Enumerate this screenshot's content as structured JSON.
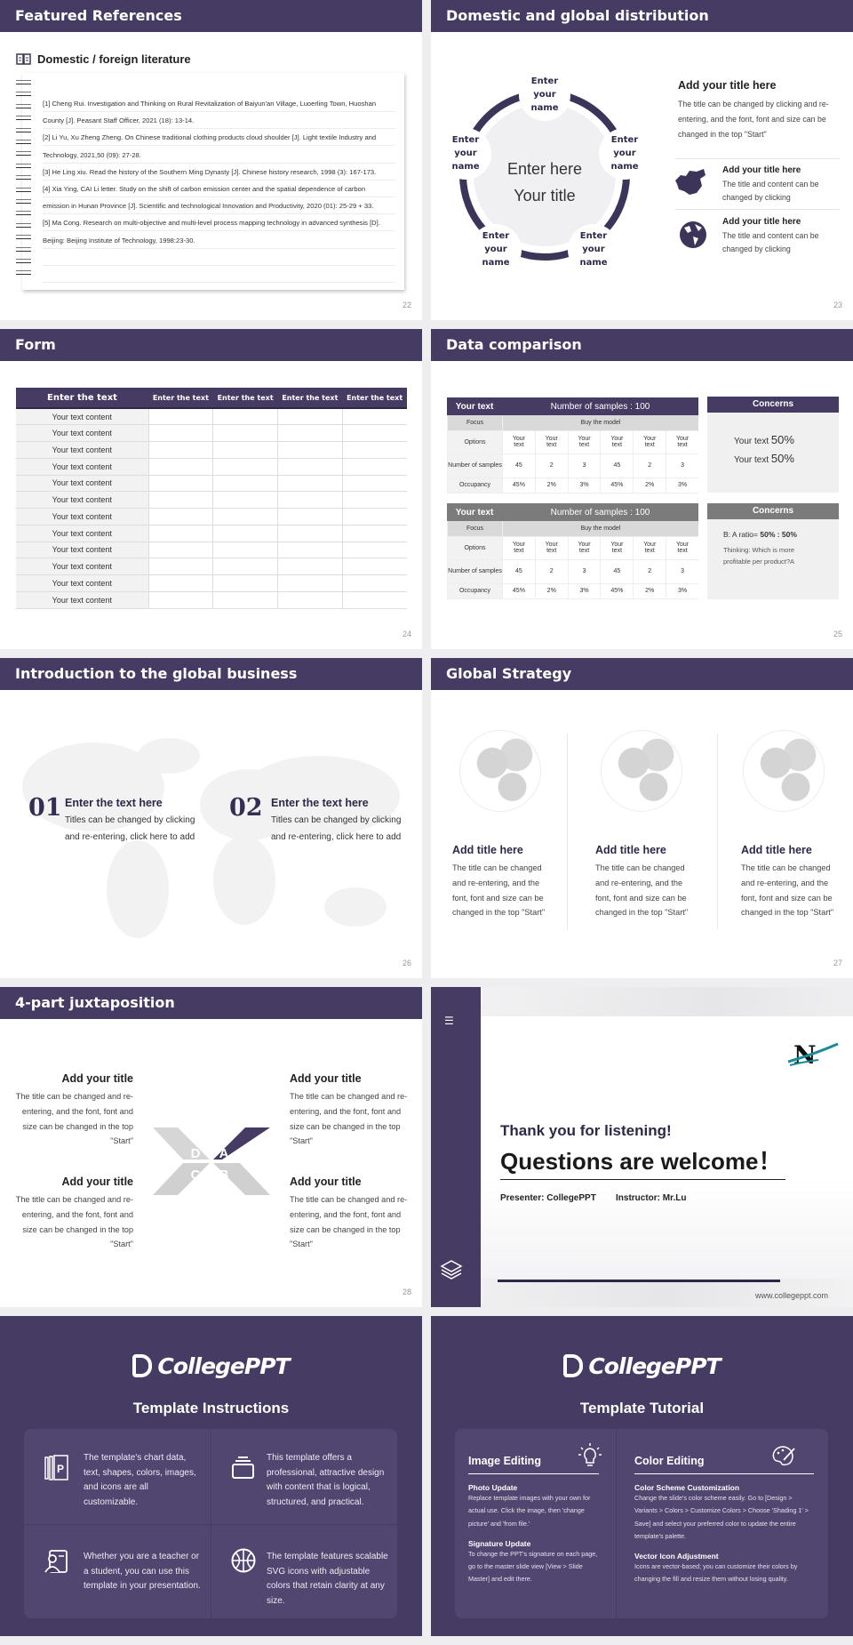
{
  "colors": {
    "primary": "#463b63",
    "card": "#51466f",
    "gray": "#f0f0f0"
  },
  "s22": {
    "title": "Featured References",
    "subtitle": "Domestic / foreign literature",
    "icon": "book-icon",
    "page": "22",
    "lines": [
      "[1] Cheng Rui. Investigation and Thinking on Rural Revitalization of Baiyun'an Village, Luoerling Town, Huoshan",
      "County [J]. Peasant Staff Officer, 2021 (18): 13-14.",
      "[2] Li Yu, Xu Zheng Zheng. On Chinese traditional clothing products cloud shoulder [J]. Light textile Industry and",
      "Technology, 2021,50 (09): 27-28.",
      "[3] He Ling xiu. Read the history of the Southern Ming Dynasty [J]. Chinese history research, 1998 (3): 167-173.",
      "[4] Xia Ying, CAI Li letter. Study on the shift of carbon emission center and the spatial dependence of carbon",
      "emission in Hunan Province [J]. Scientific and technological Innovation and Productivity, 2020 (01): 25-29 + 33.",
      "[5] Ma Cong. Research on multi-objective and multi-level process mapping technology in advanced synthesis [D].",
      "Beijing: Beijing Institute of Technology, 1998:23-30.",
      "",
      ""
    ]
  },
  "s23": {
    "title": "Domestic and global distribution",
    "page": "23",
    "center1": "Enter here",
    "center2": "Your title",
    "names": [
      "Enter\nyour\nname",
      "Enter\nyour\nname",
      "Enter\nyour\nname",
      "Enter\nyour\nname",
      "Enter\nyour\nname"
    ],
    "main_title": "Add your title here",
    "main_text": "The title can be changed by clicking and re-entering, and the font, font and size can be changed in the top \"Start\"",
    "items": [
      {
        "icon": "china-map-icon",
        "title": "Add your title here",
        "text": "The title and content can be changed by clicking"
      },
      {
        "icon": "globe-icon",
        "title": "Add your title here",
        "text": "The title and content can be changed by clicking"
      }
    ]
  },
  "s24": {
    "title": "Form",
    "page": "24",
    "headers": [
      "Enter the text",
      "Enter the text",
      "Enter the text",
      "Enter the text",
      "Enter the text"
    ],
    "rows": [
      "Your text content",
      "Your text content",
      "Your text content",
      "Your text content",
      "Your text content",
      "Your text content",
      "Your text content",
      "Your text content",
      "Your text content",
      "Your text content",
      "Your text content",
      "Your text content"
    ]
  },
  "s25": {
    "title": "Data comparison",
    "page": "25",
    "tables": [
      {
        "label": "Your text",
        "samples": "Number of samples : 100",
        "color": "#463b63"
      },
      {
        "label": "Your text",
        "samples": "Number of samples : 100",
        "color": "#7b7b7b"
      }
    ],
    "focus": "Focus",
    "focus_value": "Buy the model",
    "row_labels": [
      "Options",
      "Number of samples",
      "Occupancy"
    ],
    "options": [
      "Your text",
      "Your text",
      "Your text",
      "Your text",
      "Your text",
      "Your text"
    ],
    "numbers": [
      "45",
      "2",
      "3",
      "45",
      "2",
      "3"
    ],
    "occupancy": [
      "45%",
      "2%",
      "3%",
      "45%",
      "2%",
      "3%"
    ],
    "concern1": {
      "title": "Concerns",
      "l1": "Your text ",
      "v1": "50%",
      "l2": "Your text ",
      "v2": "50%"
    },
    "concern2": {
      "title": "Concerns",
      "ratio_label": "B: A ratio= ",
      "ratio": "50% : 50%",
      "thinking": "Thinking: Which is more profitable per product?A"
    }
  },
  "s26": {
    "title": "Introduction to the global business",
    "page": "26",
    "items": [
      {
        "num": "01",
        "title": "Enter the text here",
        "text": "Titles can be changed by clicking and re-entering, click here to add"
      },
      {
        "num": "02",
        "title": "Enter the text here",
        "text": "Titles can be changed by clicking and re-entering, click here to add"
      }
    ]
  },
  "s27": {
    "title": "Global Strategy",
    "page": "27",
    "cols": [
      {
        "title": "Add title here",
        "text": "The title can be changed and re-entering, and the font, font and size can be changed in the top \"Start\""
      },
      {
        "title": "Add title here",
        "text": "The title can be changed and re-entering, and the font, font and size can be changed in the top \"Start\""
      },
      {
        "title": "Add title here",
        "text": "The title can be changed and re-entering, and the font, font and size can be changed in the top \"Start\""
      }
    ]
  },
  "s28": {
    "title": "4-part juxtaposition",
    "page": "28",
    "letters": [
      "A",
      "B",
      "C",
      "D"
    ],
    "items": [
      {
        "title": "Add your title",
        "text": "The title can be changed and re-entering, and the font, font and size can be changed in the top \"Start\""
      },
      {
        "title": "Add your title",
        "text": "The title can be changed and re-entering, and the font, font and size can be changed in the top \"Start\""
      },
      {
        "title": "Add your title",
        "text": "The title can be changed and re-entering, and the font, font and size can be changed in the top \"Start\""
      },
      {
        "title": "Add your title",
        "text": "The title can be changed and re-entering, and the font, font and size can be changed in the top \"Start\""
      }
    ]
  },
  "s29": {
    "thanks": "Thank you for listening!",
    "questions": "Questions are welcome！",
    "presenter": "Presenter: CollegePPT",
    "instructor": "Instructor: Mr.Lu",
    "url": "www.collegeppt.com",
    "logo": "N"
  },
  "s30": {
    "logo": "CollegePPT",
    "title": "Template Instructions",
    "items": [
      {
        "icon": "slides-icon",
        "text": "The template's chart data, text, shapes, colors, images, and icons are all customizable."
      },
      {
        "icon": "stack-icon",
        "text": "This template offers a professional, attractive design with content that is logical, structured, and practical."
      },
      {
        "icon": "teacher-icon",
        "text": "Whether you are a teacher or a student, you can use this template in your presentation."
      },
      {
        "icon": "basketball-icon",
        "text": "The template features scalable SVG icons with adjustable colors that retain clarity at any size."
      }
    ]
  },
  "s31": {
    "logo": "CollegePPT",
    "title": "Template Tutorial",
    "left": {
      "heading": "Image Editing",
      "icon": "lightbulb-icon",
      "sections": [
        {
          "h": "Photo Update",
          "p": "Replace template images with your own for actual use. Click the image, then 'change picture' and 'from file.'"
        },
        {
          "h": "Signature Update",
          "p": "To change the PPT's signature on each page, go to the master slide view [View > Slide Master] and edit there."
        }
      ]
    },
    "right": {
      "heading": "Color Editing",
      "icon": "palette-icon",
      "sections": [
        {
          "h": "Color Scheme Customization",
          "p": "Change the slide's color scheme easily. Go to [Design > Variants > Colors > Customize Colors > Choose 'Shading 1' > Save] and select your preferred color to update the entire template's palette."
        },
        {
          "h": "Vector Icon Adjustment",
          "p": "Icons are vector-based; you can customize their colors by changing the fill and resize them without losing quality."
        }
      ]
    }
  }
}
